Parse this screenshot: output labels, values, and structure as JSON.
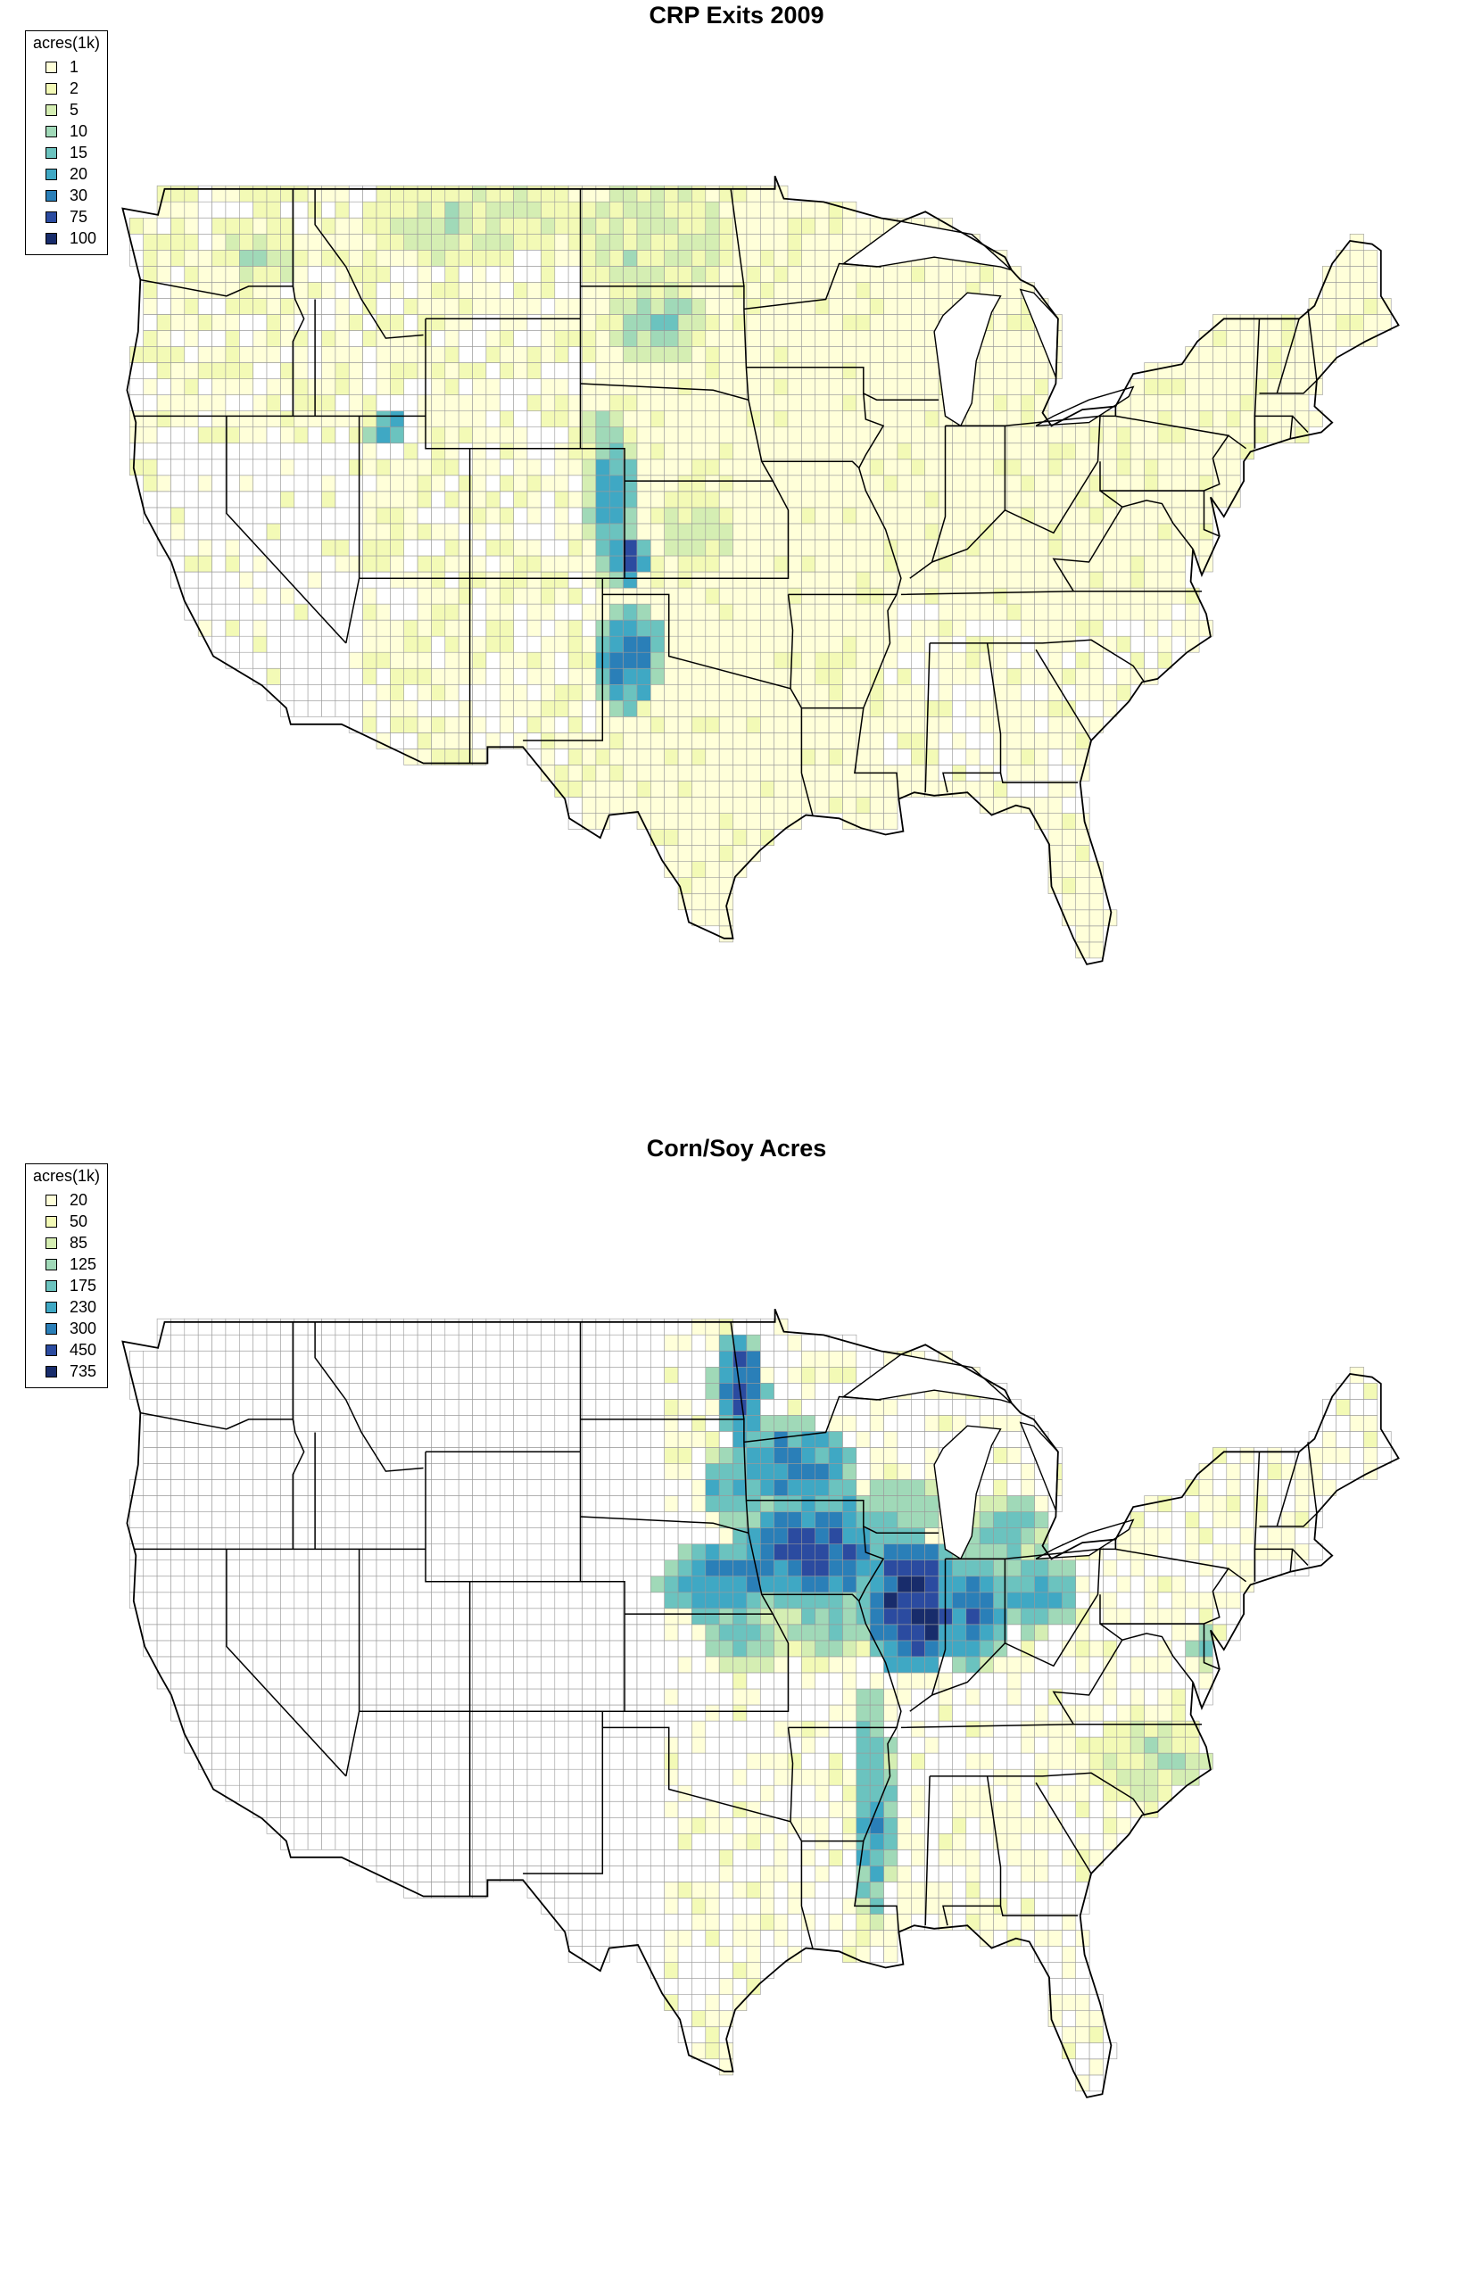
{
  "maps": [
    {
      "title": "CRP Exits 2009",
      "legend": {
        "title": "acres(1k)",
        "items": [
          {
            "label": "1",
            "color": "#ffffd9"
          },
          {
            "label": "2",
            "color": "#f3fab6"
          },
          {
            "label": "5",
            "color": "#d5eeb3"
          },
          {
            "label": "10",
            "color": "#a0d9b8"
          },
          {
            "label": "15",
            "color": "#6bc3bf"
          },
          {
            "label": "20",
            "color": "#3fa8c4"
          },
          {
            "label": "30",
            "color": "#2a7fb8"
          },
          {
            "label": "75",
            "color": "#2b4ba0"
          },
          {
            "label": "100",
            "color": "#182c6b"
          }
        ]
      },
      "hotspots": [
        {
          "name": "northern-plains",
          "lon": -101,
          "lat": 47.5,
          "level": 3,
          "rx": 3.0,
          "ry": 1.5
        },
        {
          "name": "montana-north",
          "lon": -109,
          "lat": 48.0,
          "level": 3,
          "rx": 4.0,
          "ry": 1.0
        },
        {
          "name": "eastern-washington",
          "lon": -118.5,
          "lat": 47.0,
          "level": 3,
          "rx": 1.5,
          "ry": 0.8
        },
        {
          "name": "south-dakota",
          "lon": -100.5,
          "lat": 44.8,
          "level": 4,
          "rx": 2.0,
          "ry": 1.0
        },
        {
          "name": "eastern-colorado",
          "lon": -102.6,
          "lat": 39.3,
          "level": 6,
          "rx": 0.9,
          "ry": 2.0
        },
        {
          "name": "southwest-kansas",
          "lon": -101.8,
          "lat": 37.6,
          "level": 8,
          "rx": 0.6,
          "ry": 0.7
        },
        {
          "name": "texas-panhandle",
          "lon": -101.8,
          "lat": 34.5,
          "level": 7,
          "rx": 1.3,
          "ry": 1.3
        },
        {
          "name": "northern-utah",
          "lon": -112.7,
          "lat": 41.6,
          "level": 7,
          "rx": 0.8,
          "ry": 0.4
        },
        {
          "name": "central-kansas",
          "lon": -98.8,
          "lat": 38.5,
          "level": 3,
          "rx": 1.5,
          "ry": 1.0
        },
        {
          "name": "nebraska-panhandle",
          "lon": -103.0,
          "lat": 41.5,
          "level": 4,
          "rx": 1.0,
          "ry": 0.7
        }
      ],
      "background_level": 1
    },
    {
      "title": "Corn/Soy Acres",
      "legend": {
        "title": "acres(1k)",
        "items": [
          {
            "label": "20",
            "color": "#ffffd9"
          },
          {
            "label": "50",
            "color": "#f3fab6"
          },
          {
            "label": "85",
            "color": "#d5eeb3"
          },
          {
            "label": "125",
            "color": "#a0d9b8"
          },
          {
            "label": "175",
            "color": "#6bc3bf"
          },
          {
            "label": "230",
            "color": "#3fa8c4"
          },
          {
            "label": "300",
            "color": "#2a7fb8"
          },
          {
            "label": "450",
            "color": "#2b4ba0"
          },
          {
            "label": "735",
            "color": "#182c6b"
          }
        ]
      },
      "hotspots": [
        {
          "name": "iowa",
          "lon": -93.5,
          "lat": 42.0,
          "level": 8,
          "rx": 3.0,
          "ry": 1.4
        },
        {
          "name": "illinois",
          "lon": -89.0,
          "lat": 40.3,
          "level": 9,
          "rx": 1.8,
          "ry": 1.8
        },
        {
          "name": "indiana",
          "lon": -86.2,
          "lat": 40.2,
          "level": 7,
          "rx": 1.5,
          "ry": 1.5
        },
        {
          "name": "ohio",
          "lon": -83.3,
          "lat": 40.6,
          "level": 6,
          "rx": 1.5,
          "ry": 1.0
        },
        {
          "name": "southern-minnesota",
          "lon": -94.5,
          "lat": 44.5,
          "level": 7,
          "rx": 2.5,
          "ry": 1.2
        },
        {
          "name": "red-river-valley",
          "lon": -96.8,
          "lat": 47.0,
          "level": 8,
          "rx": 1.0,
          "ry": 1.4
        },
        {
          "name": "eastern-nebraska",
          "lon": -97.5,
          "lat": 41.0,
          "level": 7,
          "rx": 2.5,
          "ry": 1.0
        },
        {
          "name": "south-dakota-east",
          "lon": -97.3,
          "lat": 44.0,
          "level": 6,
          "rx": 1.0,
          "ry": 1.0
        },
        {
          "name": "mississippi-delta",
          "lon": -90.8,
          "lat": 34.0,
          "level": 6,
          "rx": 0.8,
          "ry": 3.0
        },
        {
          "name": "southern-michigan",
          "lon": -84.5,
          "lat": 42.5,
          "level": 5,
          "rx": 1.5,
          "ry": 1.0
        },
        {
          "name": "wisconsin",
          "lon": -89.5,
          "lat": 43.3,
          "level": 5,
          "rx": 1.5,
          "ry": 0.8
        },
        {
          "name": "kansas-ne",
          "lon": -96.5,
          "lat": 39.3,
          "level": 5,
          "rx": 1.5,
          "ry": 0.8
        },
        {
          "name": "missouri-north",
          "lon": -92.5,
          "lat": 39.8,
          "level": 5,
          "rx": 2.0,
          "ry": 0.8
        },
        {
          "name": "delmarva",
          "lon": -75.7,
          "lat": 39.0,
          "level": 5,
          "rx": 0.6,
          "ry": 0.6
        },
        {
          "name": "southeastern-plains",
          "lon": -78.0,
          "lat": 35.5,
          "level": 3,
          "rx": 2.5,
          "ry": 1.3
        }
      ],
      "background_level": 0
    }
  ]
}
